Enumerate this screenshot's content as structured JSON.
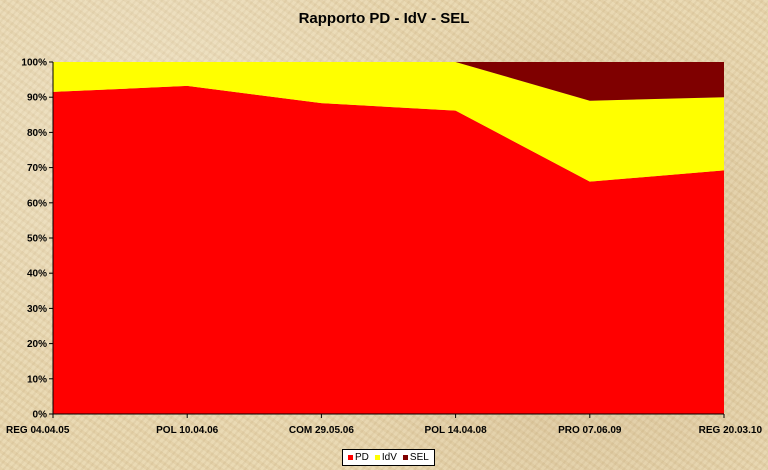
{
  "chart_data": {
    "type": "area",
    "stacked": true,
    "percent": true,
    "title": "Rapporto PD - IdV - SEL",
    "categories": [
      "REG 04.04.05",
      "POL 10.04.06",
      "COM 29.05.06",
      "POL 14.04.08",
      "PRO 07.06.09",
      "REG 20.03.10"
    ],
    "series": [
      {
        "name": "PD",
        "color": "#ff0000",
        "values": [
          91.5,
          93.2,
          88.3,
          86.2,
          66.0,
          69.2
        ]
      },
      {
        "name": "IdV",
        "color": "#ffff00",
        "values": [
          8.5,
          6.8,
          11.7,
          13.8,
          23.0,
          20.8
        ]
      },
      {
        "name": "SEL",
        "color": "#7f0000",
        "values": [
          0,
          0,
          0,
          0,
          11.0,
          10.0
        ]
      }
    ],
    "ylim": [
      0,
      100
    ],
    "yticks": [
      "0%",
      "10%",
      "20%",
      "30%",
      "40%",
      "50%",
      "60%",
      "70%",
      "80%",
      "90%",
      "100%"
    ],
    "grid": false,
    "legend": "bottom"
  }
}
